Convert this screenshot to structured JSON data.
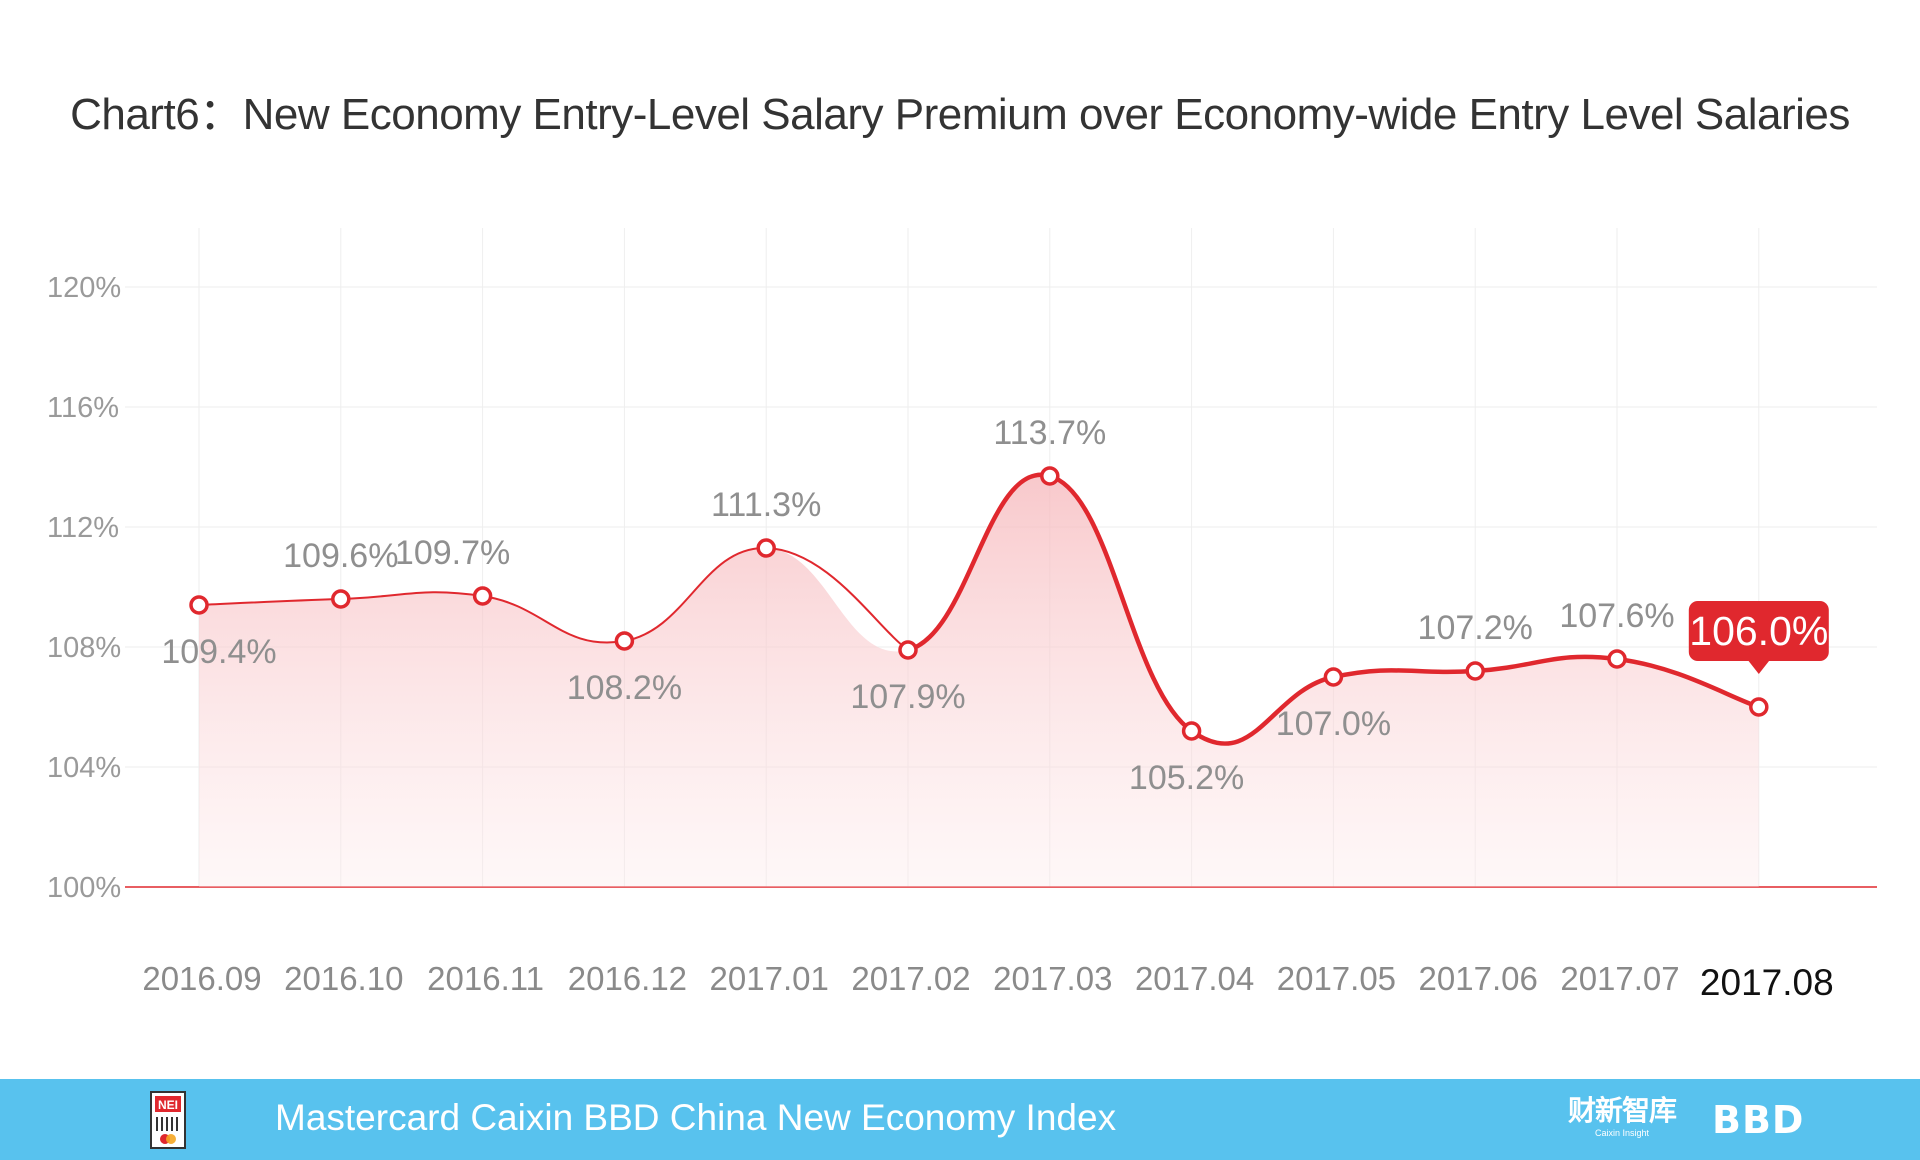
{
  "chart_data": {
    "type": "area",
    "title": "Chart6：New Economy Entry-Level Salary Premium over Economy-wide Entry Level Salaries",
    "xlabel": "",
    "ylabel": "",
    "categories": [
      "2016.09",
      "2016.10",
      "2016.11",
      "2016.12",
      "2017.01",
      "2017.02",
      "2017.03",
      "2017.04",
      "2017.05",
      "2017.06",
      "2017.07",
      "2017.08"
    ],
    "values": [
      109.4,
      109.6,
      109.7,
      108.2,
      111.3,
      107.9,
      113.7,
      105.2,
      107.0,
      107.2,
      107.6,
      106.0
    ],
    "value_labels": [
      "109.4%",
      "109.6%",
      "109.7%",
      "108.2%",
      "111.3%",
      "107.9%",
      "113.7%",
      "105.2%",
      "107.0%",
      "107.2%",
      "107.6%",
      "106.0%"
    ],
    "ylim": [
      100,
      120
    ],
    "yticks": [
      100,
      104,
      108,
      112,
      116,
      120
    ],
    "ytick_labels": [
      "100%",
      "104%",
      "108%",
      "112%",
      "116%",
      "120%"
    ],
    "highlight_index": 11,
    "grid": true,
    "colors": {
      "line": "#e0282e",
      "area": "#fbd7d9",
      "baseline": "#e0282e",
      "grid": "#eeeeee"
    }
  },
  "footer": {
    "logo_text": "NEI",
    "index_name": "Mastercard Caixin BBD China New Economy Index",
    "caixin_cn": "财新智库",
    "caixin_en": "Caixin Insight",
    "bbd": "BBD",
    "background": "#58c2ee"
  }
}
